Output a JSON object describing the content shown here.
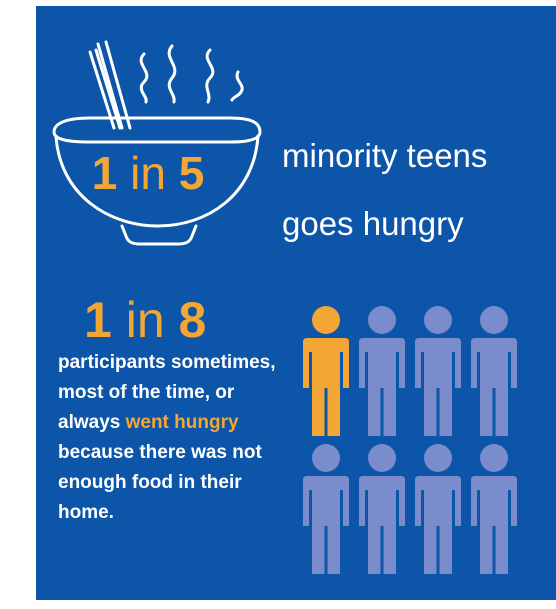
{
  "colors": {
    "background": "#0c55a8",
    "accent": "#f4a635",
    "figure_default": "#7a8ccb",
    "text": "#ffffff"
  },
  "icons": {
    "bowl": "bowl-with-chopsticks-and-steam-icon",
    "person": "person-icon"
  },
  "stat1": {
    "num1": "1",
    "word": "in",
    "num2": "5",
    "line1": "minority teens",
    "line2": "goes hungry"
  },
  "stat2": {
    "num1": "1",
    "word": "in",
    "num2": "8",
    "body_before": "participants sometimes, most of the time, or always",
    "highlight": "went hungry",
    "body_after": "because there was not enough food in their home."
  },
  "people_grid": {
    "total": 8,
    "highlighted": 1
  }
}
